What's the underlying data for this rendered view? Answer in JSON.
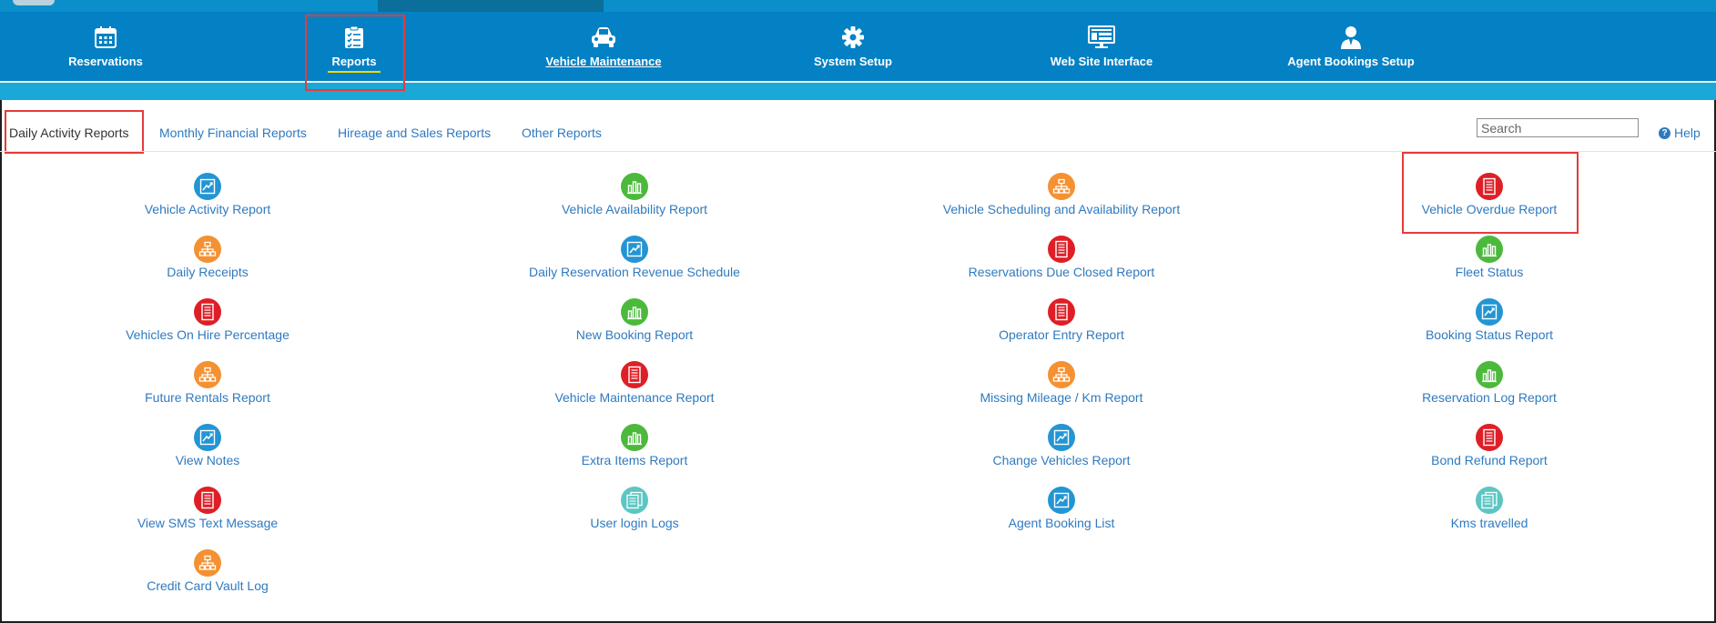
{
  "nav": {
    "items": [
      {
        "label": "Reservations",
        "icon": "calendar-icon"
      },
      {
        "label": "Reports",
        "icon": "clipboard-checklist-icon"
      },
      {
        "label": "Vehicle Maintenance",
        "icon": "car-icon"
      },
      {
        "label": "System Setup",
        "icon": "gear-icon"
      },
      {
        "label": "Web Site Interface",
        "icon": "monitor-icon"
      },
      {
        "label": "Agent Bookings Setup",
        "icon": "agent-icon"
      }
    ],
    "active": "Reports"
  },
  "subtabs": {
    "items": [
      {
        "label": "Daily Activity Reports"
      },
      {
        "label": "Monthly Financial Reports"
      },
      {
        "label": "Hireage and Sales Reports"
      },
      {
        "label": "Other Reports"
      }
    ],
    "active": "Daily Activity Reports"
  },
  "search": {
    "placeholder": "Search"
  },
  "help": {
    "label": "Help"
  },
  "colors": {
    "blue": "#2395d4",
    "green": "#4cb93d",
    "orange": "#f59132",
    "red": "#de1f26",
    "teal": "#5cc6c3",
    "nav_bg": "#0381c4",
    "highlight": "#e53b3b"
  },
  "reports": {
    "col1": [
      {
        "label": "Vehicle Activity Report",
        "icon": "line-chart-icon",
        "color": "blue"
      },
      {
        "label": "Daily Receipts",
        "icon": "org-chart-icon",
        "color": "orange"
      },
      {
        "label": "Vehicles On Hire Percentage",
        "icon": "document-icon",
        "color": "red"
      },
      {
        "label": "Future Rentals Report",
        "icon": "org-chart-icon",
        "color": "orange"
      },
      {
        "label": "View Notes",
        "icon": "line-chart-icon",
        "color": "blue"
      },
      {
        "label": "View SMS Text Message",
        "icon": "document-icon",
        "color": "red"
      },
      {
        "label": "Credit Card Vault Log",
        "icon": "org-chart-icon",
        "color": "orange"
      }
    ],
    "col2": [
      {
        "label": "Vehicle Availability Report",
        "icon": "bar-chart-icon",
        "color": "green"
      },
      {
        "label": "Daily Reservation Revenue Schedule",
        "icon": "line-chart-icon",
        "color": "blue"
      },
      {
        "label": "New Booking Report",
        "icon": "bar-chart-icon",
        "color": "green"
      },
      {
        "label": "Vehicle Maintenance Report",
        "icon": "document-icon",
        "color": "red"
      },
      {
        "label": "Extra Items Report",
        "icon": "bar-chart-icon",
        "color": "green"
      },
      {
        "label": "User login Logs",
        "icon": "documents-icon",
        "color": "teal"
      }
    ],
    "col3": [
      {
        "label": "Vehicle Scheduling and Availability Report",
        "icon": "org-chart-icon",
        "color": "orange"
      },
      {
        "label": "Reservations Due Closed Report",
        "icon": "document-icon",
        "color": "red"
      },
      {
        "label": "Operator Entry Report",
        "icon": "document-icon",
        "color": "red"
      },
      {
        "label": "Missing Mileage / Km Report",
        "icon": "org-chart-icon",
        "color": "orange"
      },
      {
        "label": "Change Vehicles Report",
        "icon": "line-chart-icon",
        "color": "blue"
      },
      {
        "label": "Agent Booking List",
        "icon": "line-chart-icon",
        "color": "blue"
      }
    ],
    "col4": [
      {
        "label": "Vehicle Overdue Report",
        "icon": "document-icon",
        "color": "red"
      },
      {
        "label": "Fleet Status",
        "icon": "bar-chart-icon",
        "color": "green"
      },
      {
        "label": "Booking Status Report",
        "icon": "line-chart-icon",
        "color": "blue"
      },
      {
        "label": "Reservation Log Report",
        "icon": "bar-chart-icon",
        "color": "green"
      },
      {
        "label": "Bond Refund Report",
        "icon": "document-icon",
        "color": "red"
      },
      {
        "label": "Kms travelled",
        "icon": "documents-icon",
        "color": "teal"
      }
    ]
  }
}
